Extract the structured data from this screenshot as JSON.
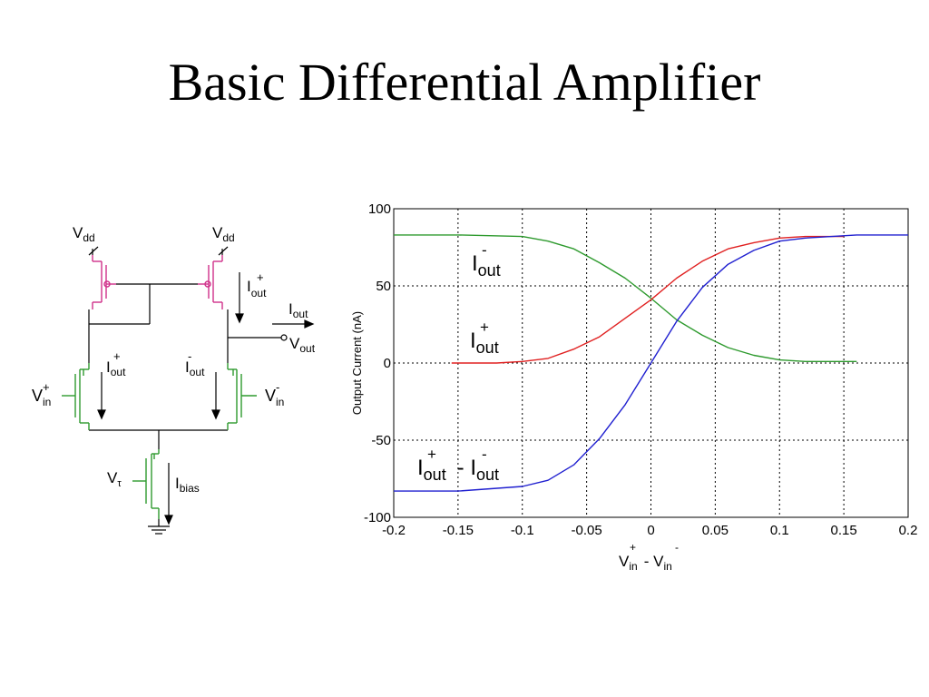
{
  "slide": {
    "title": "Basic Differential Amplifier"
  },
  "circuit": {
    "labels": {
      "vdd_left_main": "V",
      "vdd_left_sub": "dd",
      "vdd_right_main": "V",
      "vdd_right_sub": "dd",
      "iout_plus_top_main": "I",
      "iout_plus_top_sub": "out",
      "iout_plus_top_sup": "+",
      "iout_main": "I",
      "iout_sub": "out",
      "vout_main": "V",
      "vout_sub": "out",
      "iout_plus_left_main": "I",
      "iout_plus_left_sub": "out",
      "iout_plus_left_sup": "+",
      "iout_minus_right_main": "I",
      "iout_minus_right_sub": "out",
      "iout_minus_right_sup": "-",
      "vin_plus_main": "V",
      "vin_plus_sub": "in",
      "vin_plus_sup": "+",
      "vin_minus_main": "V",
      "vin_minus_sub": "in",
      "vin_minus_sup": "-",
      "vtau_main": "V",
      "vtau_sub": "τ",
      "ibias_main": "I",
      "ibias_sub": "bias"
    },
    "colors": {
      "pmos": "#d0308a",
      "nmos": "#2e9a2e",
      "wire": "#000000"
    }
  },
  "chart_data": {
    "type": "line",
    "ylabel": "Output Current (nA)",
    "xlabel": {
      "main1": "V",
      "sub1": "in",
      "sup1": "+",
      "sep": " - ",
      "main2": "V",
      "sub2": "in",
      "sup2": "-"
    },
    "xlim": [
      -0.2,
      0.2
    ],
    "ylim": [
      -100,
      100
    ],
    "x_ticks": [
      "-0.2",
      "-0.15",
      "-0.1",
      "-0.05",
      "0",
      "0.05",
      "0.1",
      "0.15",
      "0.2"
    ],
    "y_ticks": [
      "100",
      "50",
      "0",
      "-50",
      "-100"
    ],
    "grid": true,
    "series": [
      {
        "color": "#2e9a2e",
        "x": [
          -0.2,
          -0.15,
          -0.1,
          -0.08,
          -0.06,
          -0.04,
          -0.02,
          0,
          0.02,
          0.04,
          0.06,
          0.08,
          0.1,
          0.12,
          0.16
        ],
        "y": [
          83,
          83,
          82,
          79,
          74,
          65,
          55,
          42,
          28,
          18,
          10,
          5,
          2,
          1,
          1
        ]
      },
      {
        "color": "#e02020",
        "x": [
          -0.155,
          -0.12,
          -0.1,
          -0.08,
          -0.06,
          -0.04,
          -0.02,
          0,
          0.02,
          0.04,
          0.06,
          0.08,
          0.1,
          0.12,
          0.15
        ],
        "y": [
          0,
          0,
          1,
          3,
          9,
          17,
          29,
          41,
          55,
          66,
          74,
          78,
          81,
          82,
          82
        ]
      },
      {
        "color": "#2020d0",
        "x": [
          -0.2,
          -0.15,
          -0.1,
          -0.08,
          -0.06,
          -0.04,
          -0.02,
          0,
          0.02,
          0.04,
          0.06,
          0.08,
          0.1,
          0.12,
          0.16,
          0.2
        ],
        "y": [
          -83,
          -83,
          -80,
          -76,
          -66,
          -49,
          -27,
          0,
          27,
          49,
          64,
          73,
          79,
          81,
          83,
          83
        ]
      }
    ],
    "annotations": {
      "iout_minus": {
        "main": "I",
        "sub": "out",
        "sup": "-"
      },
      "iout_plus": {
        "main": "I",
        "sub": "out",
        "sup": "+"
      },
      "diff": {
        "main1": "I",
        "sub1": "out",
        "sup1": "+",
        "sep": " - ",
        "main2": "I",
        "sub2": "out",
        "sup2": "-"
      }
    }
  }
}
